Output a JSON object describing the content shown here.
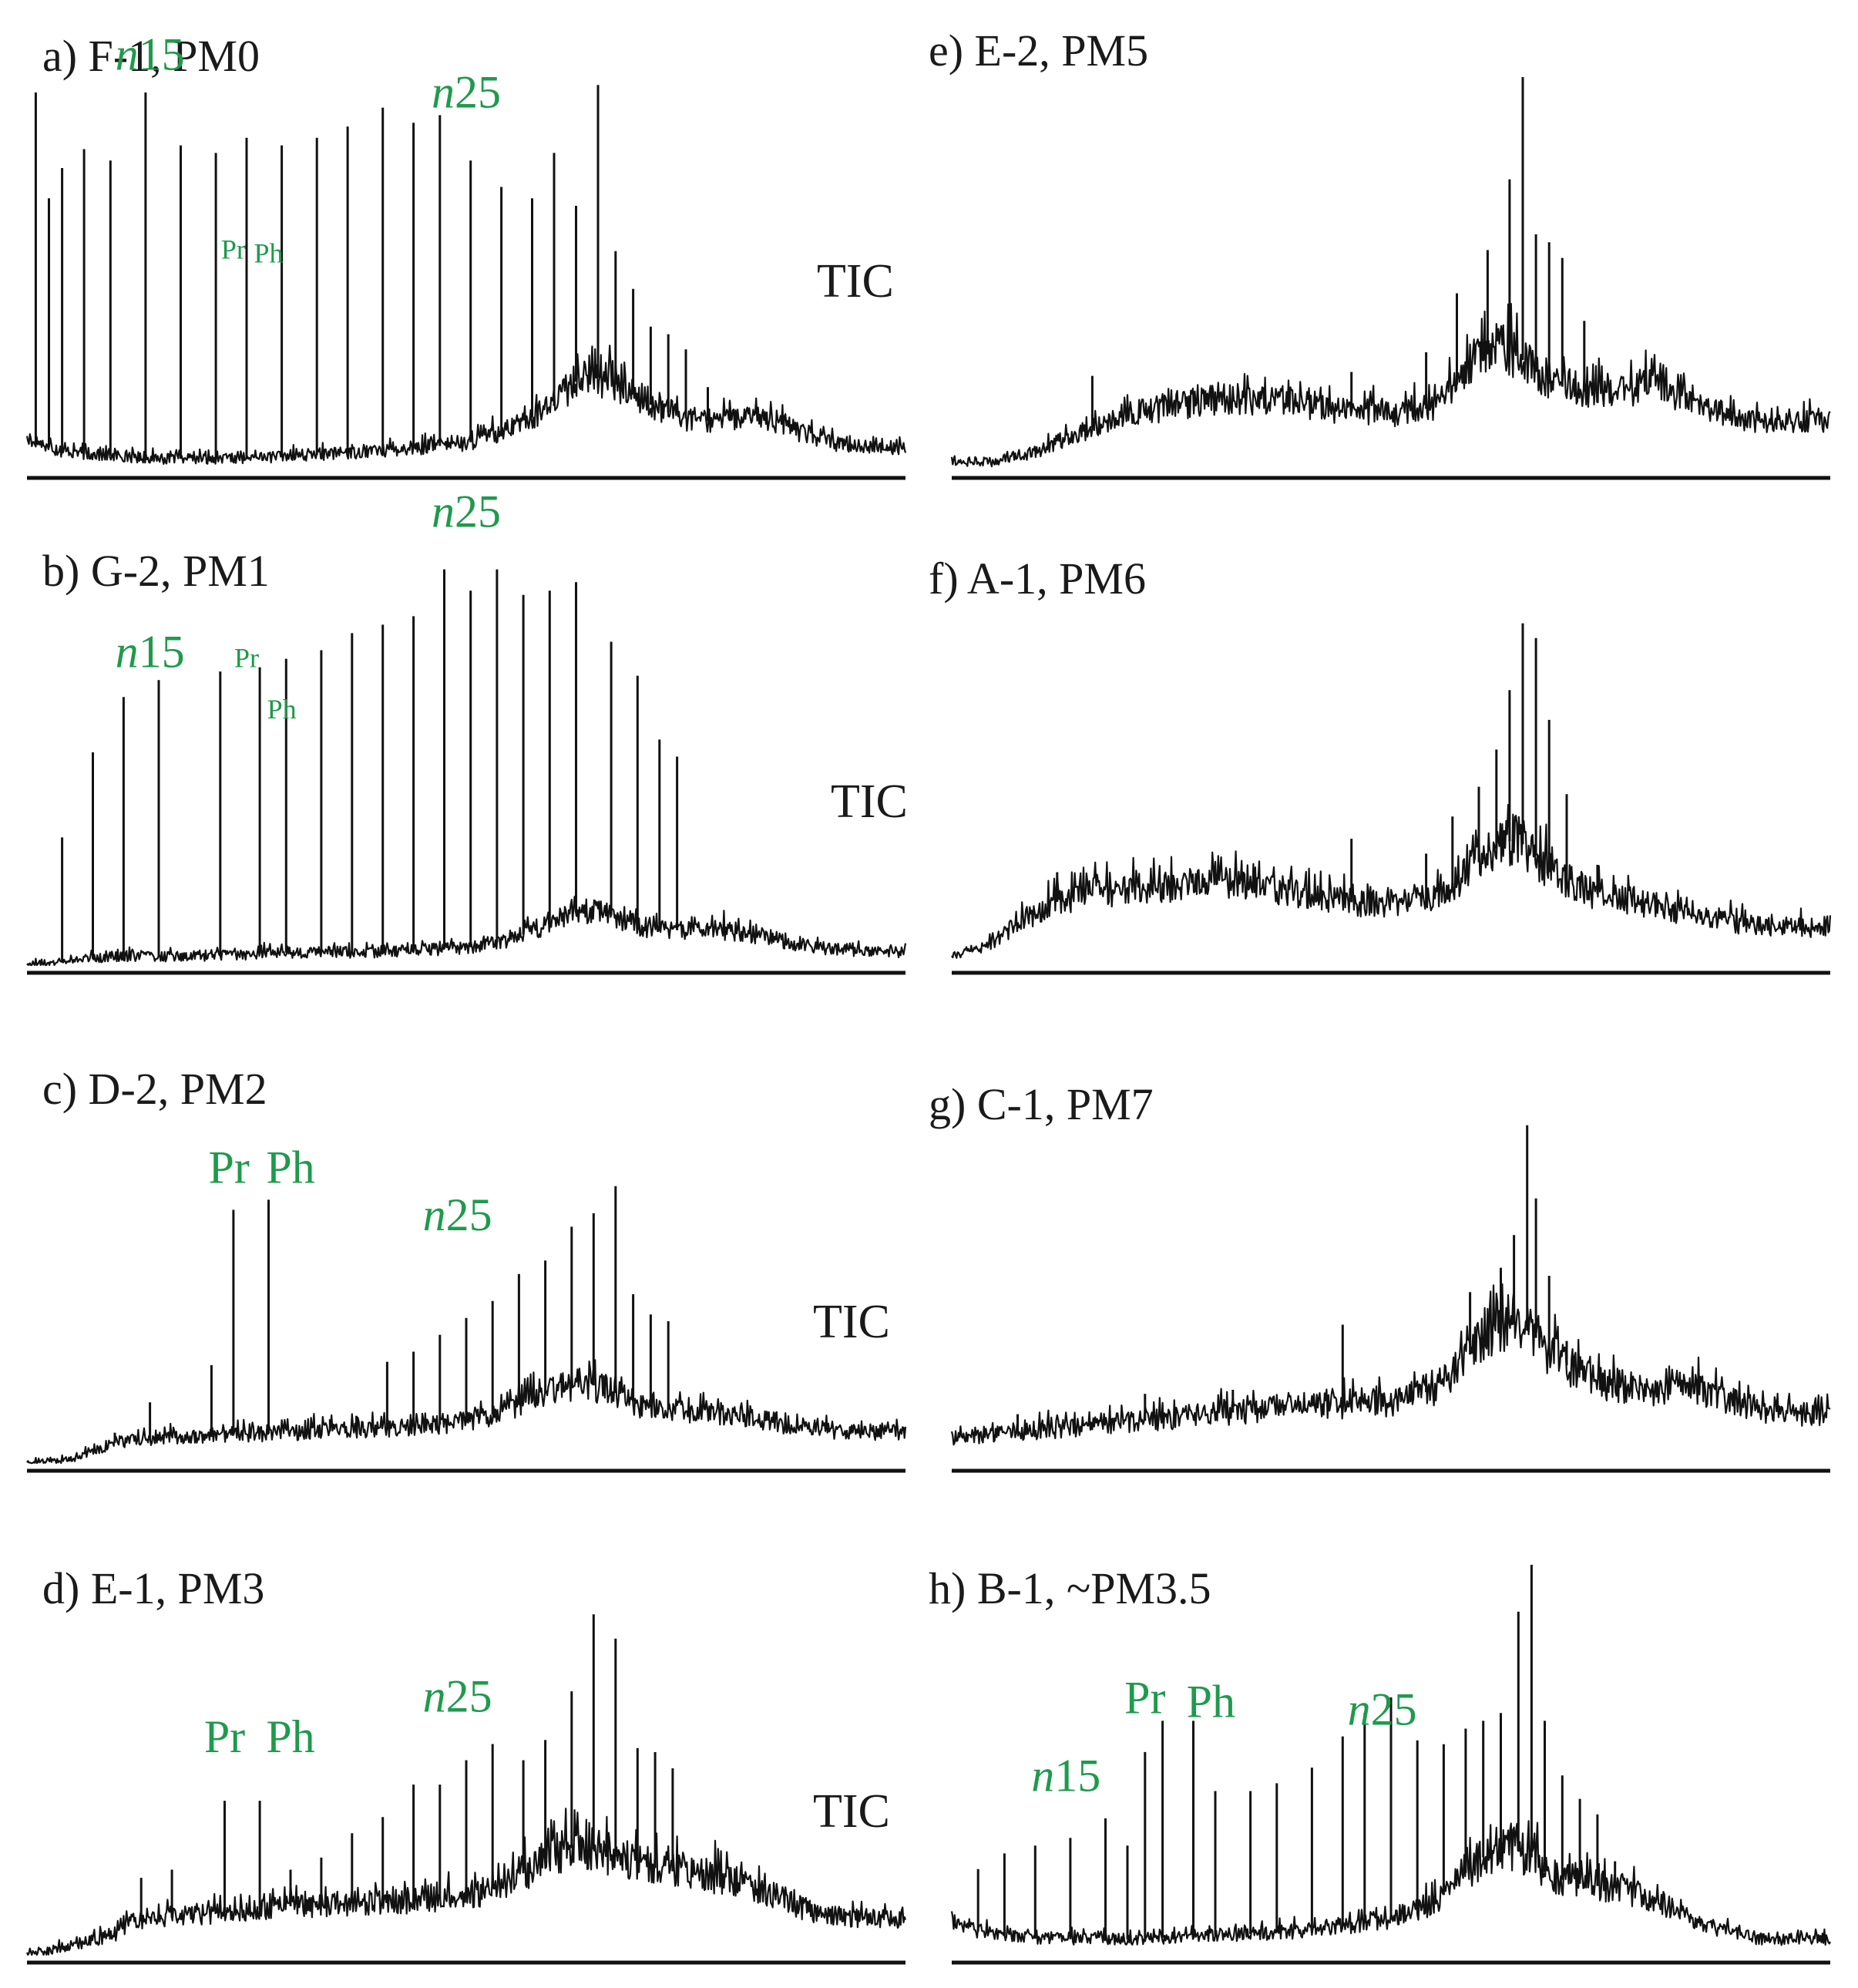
{
  "figure": {
    "background": "#ffffff",
    "line_color": "#111111",
    "label_color": "#1a1a1a",
    "annotation_color": "#1f9a4d"
  },
  "chart_data": [
    {
      "id": "a",
      "type": "line",
      "title": "a) F-1, PM0",
      "channel": "TIC",
      "show_channel": true,
      "x_range": [
        0,
        100
      ],
      "y_range": [
        0,
        100
      ],
      "baseline": {
        "x": [
          0,
          4,
          8,
          15,
          25,
          40,
          50,
          55,
          60,
          62,
          64,
          66,
          69,
          72,
          76,
          80,
          84,
          88,
          92,
          96,
          100
        ],
        "y": [
          8,
          5,
          4,
          3,
          3,
          5,
          7,
          11,
          17,
          23,
          25,
          24,
          20,
          16,
          13,
          13,
          14,
          10,
          7,
          6,
          6
        ]
      },
      "peaks": {
        "x": [
          1,
          2.5,
          4,
          6.5,
          9.5,
          13.5,
          17.5,
          21.5,
          25,
          29,
          33,
          36.5,
          40.5,
          44,
          47,
          50.5,
          54,
          57.5,
          60,
          62.5,
          65,
          67,
          69,
          71,
          73,
          75,
          77.5,
          80
        ],
        "y": [
          100,
          72,
          80,
          85,
          82,
          100,
          86,
          84,
          88,
          86,
          88,
          91,
          96,
          92,
          94,
          82,
          75,
          72,
          84,
          70,
          102,
          58,
          48,
          38,
          36,
          32,
          22,
          18
        ]
      },
      "annotations": [
        {
          "text": "n",
          "suffix": "15",
          "x": 14,
          "y": 106,
          "size": "big"
        },
        {
          "text": "n",
          "suffix": "25",
          "x": 50,
          "y": 96,
          "size": "big"
        },
        {
          "text": "Pr",
          "suffix": "",
          "x": 23.5,
          "y": 56,
          "size": "small"
        },
        {
          "text": "Ph",
          "suffix": "",
          "x": 27.5,
          "y": 55,
          "size": "small"
        }
      ]
    },
    {
      "id": "b",
      "type": "line",
      "title": "b) G-2, PM1",
      "channel": "TIC",
      "show_channel": true,
      "x_range": [
        0,
        100
      ],
      "y_range": [
        0,
        100
      ],
      "baseline": {
        "x": [
          0,
          10,
          20,
          30,
          40,
          50,
          55,
          60,
          63,
          66,
          70,
          75,
          80,
          85,
          90,
          95,
          100
        ],
        "y": [
          0,
          2,
          2,
          3,
          3,
          4,
          6,
          10,
          13,
          12,
          9,
          8,
          8,
          6,
          4,
          3,
          3
        ]
      },
      "peaks": {
        "x": [
          4,
          7.5,
          11,
          15,
          22,
          26.5,
          29.5,
          33.5,
          37,
          40.5,
          44,
          47.5,
          50.5,
          53.5,
          56.5,
          59.5,
          62.5,
          66.5,
          69.5,
          72,
          74
        ],
        "y": [
          30,
          50,
          63,
          67,
          69,
          70,
          72,
          74,
          78,
          80,
          82,
          93,
          88,
          93,
          87,
          88,
          90,
          76,
          68,
          53,
          49
        ]
      },
      "annotations": [
        {
          "text": "n",
          "suffix": "15",
          "x": 14,
          "y": 70,
          "size": "big"
        },
        {
          "text": "n",
          "suffix": "25",
          "x": 50,
          "y": 103,
          "size": "big"
        },
        {
          "text": "Pr",
          "suffix": "",
          "x": 25,
          "y": 70,
          "size": "small"
        },
        {
          "text": "Ph",
          "suffix": "",
          "x": 29,
          "y": 58,
          "size": "small"
        }
      ]
    },
    {
      "id": "c",
      "type": "line",
      "title": "c) D-2, PM2",
      "channel": "TIC",
      "show_channel": true,
      "x_range": [
        0,
        100
      ],
      "y_range": [
        0,
        100
      ],
      "baseline": {
        "x": [
          0,
          5,
          10,
          20,
          30,
          40,
          50,
          55,
          60,
          63,
          66,
          70,
          75,
          80,
          85,
          90,
          95,
          100
        ],
        "y": [
          0,
          1,
          6,
          8,
          9,
          10,
          12,
          16,
          22,
          24,
          22,
          17,
          15,
          14,
          12,
          10,
          9,
          9
        ]
      },
      "peaks": {
        "x": [
          10,
          14,
          21,
          23.5,
          27.5,
          34.5,
          37.5,
          41,
          44,
          47,
          50,
          53,
          56,
          59,
          62,
          64.5,
          67,
          69,
          71,
          73
        ],
        "y": [
          9,
          18,
          29,
          75,
          78,
          13,
          14,
          30,
          33,
          38,
          43,
          48,
          56,
          60,
          70,
          74,
          82,
          50,
          44,
          42
        ]
      },
      "annotations": [
        {
          "text": "Pr",
          "suffix": "",
          "x": 23,
          "y": 83,
          "size": "big"
        },
        {
          "text": "Ph",
          "suffix": "",
          "x": 30,
          "y": 83,
          "size": "big"
        },
        {
          "text": "n",
          "suffix": "25",
          "x": 49,
          "y": 69,
          "size": "big"
        }
      ]
    },
    {
      "id": "d",
      "type": "line",
      "title": "d) E-1, PM3",
      "channel": "TIC",
      "show_channel": true,
      "x_range": [
        0,
        100
      ],
      "y_range": [
        0,
        100
      ],
      "baseline": {
        "x": [
          0,
          5,
          10,
          12,
          20,
          30,
          40,
          50,
          55,
          60,
          63,
          66,
          70,
          75,
          80,
          85,
          90,
          95,
          100
        ],
        "y": [
          0,
          2,
          5,
          8,
          10,
          12,
          13,
          14,
          18,
          25,
          27,
          25,
          22,
          20,
          19,
          14,
          10,
          9,
          9
        ]
      },
      "peaks": {
        "x": [
          13,
          16.5,
          22.5,
          26.5,
          30,
          33.5,
          37,
          40.5,
          44,
          47,
          50,
          53,
          56.5,
          59,
          62,
          64.5,
          67,
          69.5,
          71.5,
          73.5
        ],
        "y": [
          19,
          21,
          38,
          38,
          21,
          24,
          30,
          34,
          42,
          42,
          48,
          52,
          48,
          53,
          65,
          84,
          78,
          51,
          50,
          46
        ]
      },
      "annotations": [
        {
          "text": "Pr",
          "suffix": "",
          "x": 22.5,
          "y": 50,
          "size": "big"
        },
        {
          "text": "Ph",
          "suffix": "",
          "x": 30,
          "y": 50,
          "size": "big"
        },
        {
          "text": "n",
          "suffix": "25",
          "x": 49,
          "y": 60,
          "size": "big"
        }
      ]
    },
    {
      "id": "e",
      "type": "line",
      "title": "e) E-2, PM5",
      "channel": "TIC",
      "show_channel": false,
      "x_range": [
        0,
        100
      ],
      "y_range": [
        0,
        100
      ],
      "baseline": {
        "x": [
          0,
          5,
          10,
          15,
          20,
          25,
          30,
          35,
          40,
          45,
          50,
          55,
          57,
          59,
          61,
          63,
          65,
          68,
          72,
          76,
          80,
          85,
          90,
          95,
          100
        ],
        "y": [
          2,
          2,
          5,
          10,
          14,
          16,
          18,
          18,
          17,
          15,
          14,
          16,
          20,
          27,
          30,
          31,
          28,
          22,
          20,
          20,
          22,
          16,
          13,
          12,
          12
        ]
      },
      "peaks": {
        "x": [
          16,
          45.5,
          54,
          57.5,
          61,
          63.5,
          65,
          66.5,
          68,
          69.5,
          72
        ],
        "y": [
          24,
          25,
          30,
          45,
          56,
          74,
          100,
          60,
          58,
          54,
          38
        ]
      },
      "annotations": []
    },
    {
      "id": "f",
      "type": "line",
      "title": "f) A-1, PM6",
      "channel": "TIC",
      "show_channel": false,
      "x_range": [
        0,
        100
      ],
      "y_range": [
        0,
        100
      ],
      "baseline": {
        "x": [
          0,
          5,
          8,
          12,
          16,
          20,
          25,
          30,
          35,
          40,
          45,
          50,
          55,
          58,
          61,
          64,
          66,
          68,
          72,
          76,
          80,
          85,
          90,
          95,
          100
        ],
        "y": [
          2,
          6,
          12,
          17,
          20,
          20,
          21,
          23,
          22,
          19,
          17,
          16,
          18,
          23,
          30,
          34,
          31,
          25,
          20,
          18,
          16,
          13,
          11,
          10,
          10
        ]
      },
      "peaks": {
        "x": [
          12,
          45.5,
          54,
          57,
          60,
          62,
          63.5,
          65,
          66.5,
          68,
          70,
          73.5
        ],
        "y": [
          25,
          34,
          30,
          40,
          48,
          58,
          74,
          92,
          88,
          66,
          46,
          27
        ]
      },
      "annotations": []
    },
    {
      "id": "g",
      "type": "line",
      "title": "g) C-1, PM7",
      "channel": "TIC",
      "show_channel": false,
      "x_range": [
        0,
        100
      ],
      "y_range": [
        0,
        100
      ],
      "baseline": {
        "x": [
          0,
          5,
          10,
          15,
          20,
          25,
          30,
          35,
          40,
          45,
          50,
          55,
          57,
          60,
          62,
          64,
          66,
          68,
          70,
          73,
          76,
          80,
          84,
          88,
          92,
          96,
          100
        ],
        "y": [
          6,
          7,
          8,
          9,
          10,
          11,
          12,
          13,
          14,
          14,
          15,
          18,
          22,
          29,
          33,
          34,
          32,
          27,
          24,
          20,
          19,
          18,
          19,
          16,
          13,
          12,
          12
        ]
      },
      "peaks": {
        "x": [
          7.5,
          22,
          32,
          44.5,
          54,
          59,
          62.5,
          64,
          65.5,
          66.5,
          68,
          70
        ],
        "y": [
          12,
          17,
          18,
          34,
          20,
          42,
          48,
          56,
          83,
          65,
          46,
          30
        ]
      },
      "annotations": []
    },
    {
      "id": "h",
      "type": "line",
      "title": "h) B-1, ~PM3.5",
      "channel": "TIC",
      "show_channel": false,
      "x_range": [
        0,
        100
      ],
      "y_range": [
        0,
        100
      ],
      "baseline": {
        "x": [
          0,
          3,
          10,
          20,
          30,
          40,
          50,
          55,
          58,
          61,
          63,
          66,
          68,
          72,
          76,
          80,
          84,
          88,
          92,
          96,
          100
        ],
        "y": [
          8,
          6,
          4,
          4,
          5,
          6,
          9,
          13,
          20,
          26,
          28,
          25,
          20,
          18,
          17,
          14,
          9,
          6,
          4,
          4,
          4
        ]
      },
      "peaks": {
        "x": [
          3,
          6,
          9.5,
          13.5,
          17.5,
          20,
          22,
          24,
          27.5,
          30,
          34,
          37,
          41,
          44.5,
          47,
          50,
          53,
          56,
          58.5,
          60.5,
          62.5,
          64.5,
          66,
          67.5,
          69.5,
          71.5,
          73.5,
          75.5
        ],
        "y": [
          22,
          26,
          28,
          30,
          35,
          28,
          52,
          60,
          60,
          42,
          42,
          44,
          48,
          56,
          62,
          66,
          55,
          54,
          58,
          60,
          62,
          88,
          100,
          60,
          46,
          40,
          36,
          24
        ]
      },
      "annotations": [
        {
          "text": "n",
          "suffix": "15",
          "x": 13,
          "y": 42,
          "size": "big"
        },
        {
          "text": "Pr",
          "suffix": "",
          "x": 22,
          "y": 62,
          "size": "big"
        },
        {
          "text": "Ph",
          "suffix": "",
          "x": 29.5,
          "y": 61,
          "size": "big"
        },
        {
          "text": "n",
          "suffix": "25",
          "x": 49,
          "y": 59,
          "size": "big"
        }
      ]
    }
  ]
}
